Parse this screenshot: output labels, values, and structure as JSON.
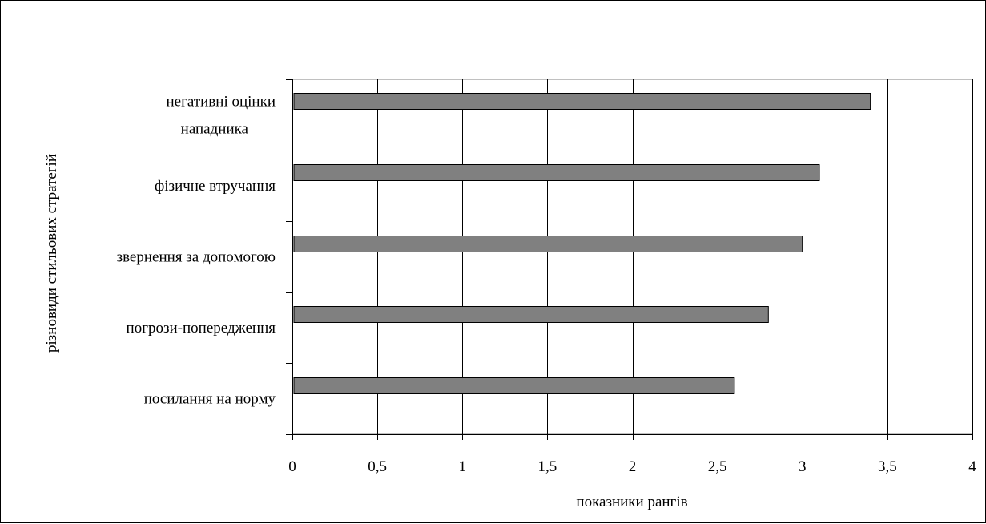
{
  "chart_data": {
    "type": "bar",
    "orientation": "horizontal",
    "categories": [
      "негативні оцінки нападника",
      "фізичне втручання",
      "звернення за допомогою",
      "погрози-попередження",
      "посилання на норму"
    ],
    "category_label_lines": [
      [
        "негативні оцінки",
        "нападника"
      ],
      [
        "фізичне втручання"
      ],
      [
        "звернення за допомогою"
      ],
      [
        "погрози-попередження"
      ],
      [
        "посилання на норму"
      ]
    ],
    "values": [
      3.4,
      3.1,
      3.0,
      2.8,
      2.6
    ],
    "xlim": [
      0,
      4
    ],
    "xticks": [
      0,
      0.5,
      1,
      1.5,
      2,
      2.5,
      3,
      3.5,
      4
    ],
    "xtick_labels": [
      "0",
      "0,5",
      "1",
      "1,5",
      "2",
      "2,5",
      "3",
      "3,5",
      "4"
    ],
    "xlabel": "показники рангів",
    "ylabel": "різновиди стильових стратегій",
    "grid": "vertical",
    "legend": "none",
    "colors": {
      "bar_fill": "#808080",
      "bar_stroke": "#000000",
      "gridline": "#000000",
      "plot_border": "#808080"
    }
  }
}
